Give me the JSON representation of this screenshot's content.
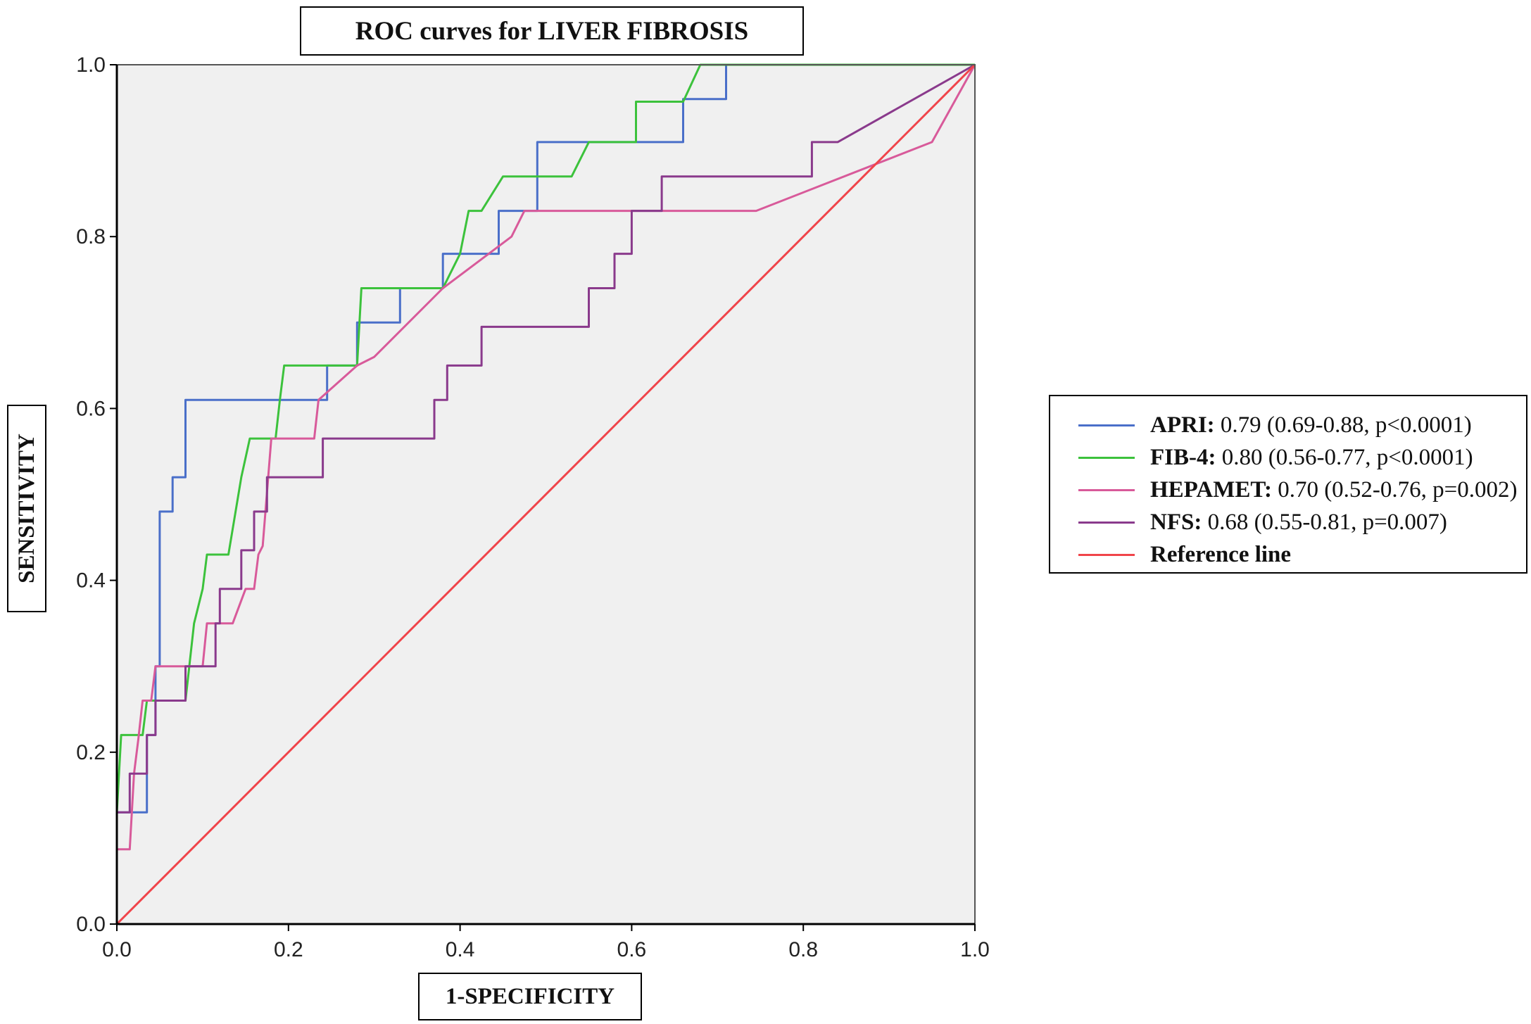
{
  "chart_data": {
    "type": "line",
    "title": "ROC curves for LIVER FIBROSIS",
    "xlabel": "1-SPECIFICITY",
    "ylabel": "SENSITIVITY",
    "xlim": [
      0,
      1
    ],
    "ylim": [
      0,
      1
    ],
    "x_ticks": [
      "0.0",
      "0.2",
      "0.4",
      "0.6",
      "0.8",
      "1.0"
    ],
    "y_ticks": [
      "0.0",
      "0.2",
      "0.4",
      "0.6",
      "0.8",
      "1.0"
    ],
    "grid": false,
    "legend_position": "right",
    "background_color": "#f0f0f0",
    "series": [
      {
        "name": "APRI:",
        "detail": "0.79 (0.69-0.88, p<0.0001)",
        "color": "#4a6fc9",
        "points": [
          [
            0,
            0
          ],
          [
            0,
            0.13
          ],
          [
            0.035,
            0.13
          ],
          [
            0.035,
            0.22
          ],
          [
            0.045,
            0.22
          ],
          [
            0.045,
            0.3
          ],
          [
            0.05,
            0.3
          ],
          [
            0.05,
            0.48
          ],
          [
            0.065,
            0.48
          ],
          [
            0.065,
            0.52
          ],
          [
            0.08,
            0.52
          ],
          [
            0.08,
            0.61
          ],
          [
            0.245,
            0.61
          ],
          [
            0.245,
            0.65
          ],
          [
            0.28,
            0.65
          ],
          [
            0.28,
            0.7
          ],
          [
            0.33,
            0.7
          ],
          [
            0.33,
            0.74
          ],
          [
            0.38,
            0.74
          ],
          [
            0.38,
            0.78
          ],
          [
            0.445,
            0.78
          ],
          [
            0.445,
            0.83
          ],
          [
            0.49,
            0.83
          ],
          [
            0.49,
            0.91
          ],
          [
            0.66,
            0.91
          ],
          [
            0.66,
            0.96
          ],
          [
            0.71,
            0.96
          ],
          [
            0.71,
            1.0
          ],
          [
            1.0,
            1.0
          ]
        ]
      },
      {
        "name": "FIB-4:",
        "detail": "0.80 (0.56-0.77, p<0.0001)",
        "color": "#3cc23c",
        "points": [
          [
            0,
            0
          ],
          [
            0,
            0.13
          ],
          [
            0.005,
            0.22
          ],
          [
            0.03,
            0.22
          ],
          [
            0.035,
            0.26
          ],
          [
            0.08,
            0.26
          ],
          [
            0.09,
            0.35
          ],
          [
            0.1,
            0.39
          ],
          [
            0.105,
            0.43
          ],
          [
            0.13,
            0.43
          ],
          [
            0.145,
            0.52
          ],
          [
            0.155,
            0.565
          ],
          [
            0.185,
            0.565
          ],
          [
            0.19,
            0.61
          ],
          [
            0.195,
            0.65
          ],
          [
            0.28,
            0.65
          ],
          [
            0.285,
            0.74
          ],
          [
            0.38,
            0.74
          ],
          [
            0.4,
            0.78
          ],
          [
            0.41,
            0.83
          ],
          [
            0.425,
            0.83
          ],
          [
            0.45,
            0.87
          ],
          [
            0.53,
            0.87
          ],
          [
            0.55,
            0.91
          ],
          [
            0.605,
            0.91
          ],
          [
            0.605,
            0.957
          ],
          [
            0.66,
            0.957
          ],
          [
            0.68,
            1.0
          ],
          [
            1.0,
            1.0
          ]
        ]
      },
      {
        "name": "HEPAMET:",
        "detail": "0.70 (0.52-0.76, p=0.002)",
        "color": "#d85a9a",
        "points": [
          [
            0,
            0
          ],
          [
            0,
            0.087
          ],
          [
            0.015,
            0.087
          ],
          [
            0.02,
            0.175
          ],
          [
            0.025,
            0.215
          ],
          [
            0.03,
            0.26
          ],
          [
            0.04,
            0.26
          ],
          [
            0.045,
            0.3
          ],
          [
            0.1,
            0.3
          ],
          [
            0.105,
            0.35
          ],
          [
            0.135,
            0.35
          ],
          [
            0.15,
            0.39
          ],
          [
            0.16,
            0.39
          ],
          [
            0.165,
            0.43
          ],
          [
            0.17,
            0.44
          ],
          [
            0.18,
            0.565
          ],
          [
            0.23,
            0.565
          ],
          [
            0.235,
            0.61
          ],
          [
            0.28,
            0.65
          ],
          [
            0.3,
            0.66
          ],
          [
            0.38,
            0.74
          ],
          [
            0.42,
            0.77
          ],
          [
            0.46,
            0.8
          ],
          [
            0.475,
            0.83
          ],
          [
            0.745,
            0.83
          ],
          [
            0.95,
            0.91
          ],
          [
            1.0,
            1.0
          ]
        ]
      },
      {
        "name": "NFS:",
        "detail": "0.68 (0.55-0.81, p=0.007)",
        "color": "#8a3a8c",
        "points": [
          [
            0,
            0
          ],
          [
            0,
            0.13
          ],
          [
            0.015,
            0.13
          ],
          [
            0.015,
            0.175
          ],
          [
            0.035,
            0.175
          ],
          [
            0.035,
            0.22
          ],
          [
            0.045,
            0.22
          ],
          [
            0.045,
            0.26
          ],
          [
            0.08,
            0.26
          ],
          [
            0.08,
            0.3
          ],
          [
            0.115,
            0.3
          ],
          [
            0.115,
            0.35
          ],
          [
            0.12,
            0.35
          ],
          [
            0.12,
            0.39
          ],
          [
            0.145,
            0.39
          ],
          [
            0.145,
            0.435
          ],
          [
            0.16,
            0.435
          ],
          [
            0.16,
            0.48
          ],
          [
            0.175,
            0.48
          ],
          [
            0.175,
            0.52
          ],
          [
            0.24,
            0.52
          ],
          [
            0.24,
            0.565
          ],
          [
            0.37,
            0.565
          ],
          [
            0.37,
            0.61
          ],
          [
            0.385,
            0.61
          ],
          [
            0.385,
            0.65
          ],
          [
            0.425,
            0.65
          ],
          [
            0.425,
            0.695
          ],
          [
            0.55,
            0.695
          ],
          [
            0.55,
            0.74
          ],
          [
            0.58,
            0.74
          ],
          [
            0.58,
            0.78
          ],
          [
            0.6,
            0.78
          ],
          [
            0.6,
            0.83
          ],
          [
            0.635,
            0.83
          ],
          [
            0.635,
            0.87
          ],
          [
            0.81,
            0.87
          ],
          [
            0.81,
            0.91
          ],
          [
            0.84,
            0.91
          ],
          [
            1.0,
            1.0
          ]
        ]
      },
      {
        "name": "Reference line",
        "detail": "",
        "color": "#f0444a",
        "points": [
          [
            0,
            0
          ],
          [
            1,
            1
          ]
        ]
      }
    ]
  }
}
